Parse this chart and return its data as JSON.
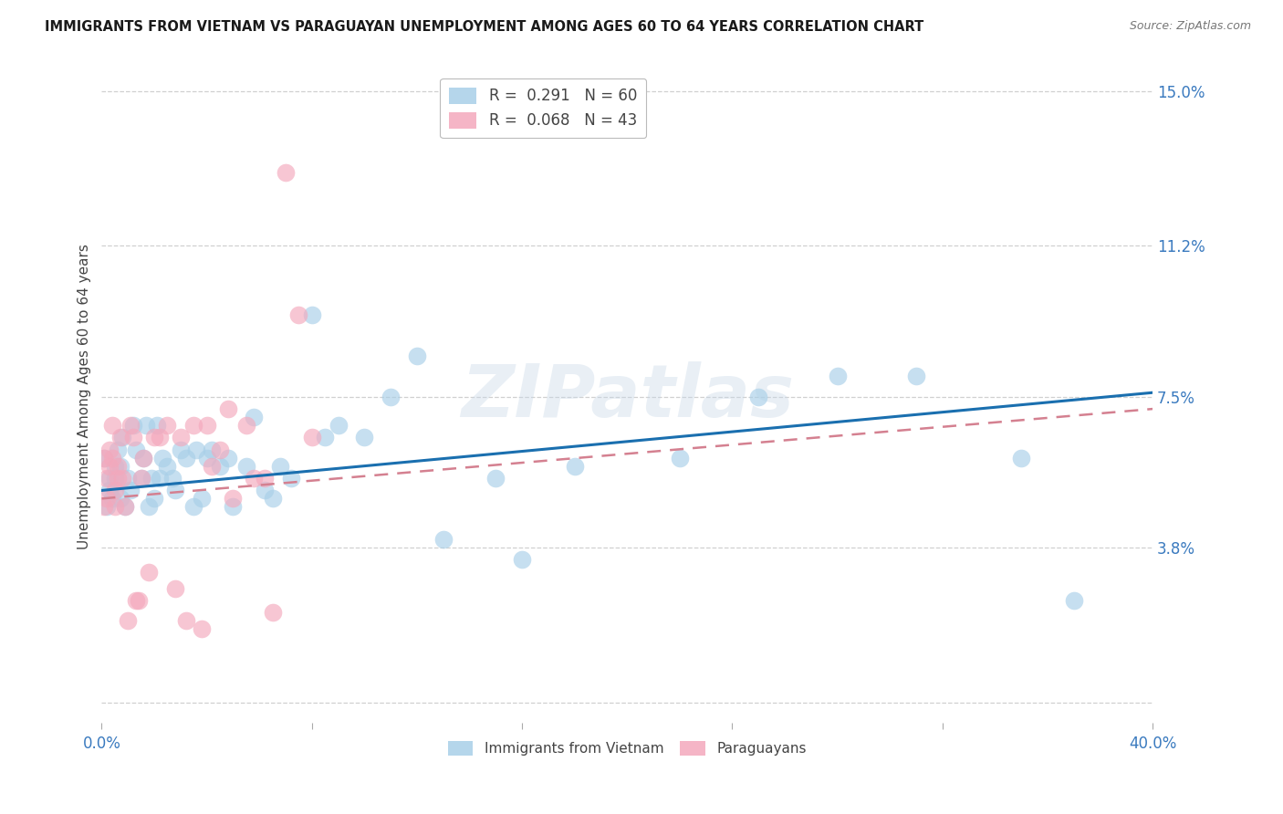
{
  "title": "IMMIGRANTS FROM VIETNAM VS PARAGUAYAN UNEMPLOYMENT AMONG AGES 60 TO 64 YEARS CORRELATION CHART",
  "source": "Source: ZipAtlas.com",
  "ylabel": "Unemployment Among Ages 60 to 64 years",
  "xlim": [
    0.0,
    0.4
  ],
  "ylim": [
    -0.005,
    0.155
  ],
  "xticks": [
    0.0,
    0.08,
    0.16,
    0.24,
    0.32,
    0.4
  ],
  "xticklabels": [
    "0.0%",
    "",
    "",
    "",
    "",
    "40.0%"
  ],
  "yticks_right": [
    0.038,
    0.075,
    0.112,
    0.15
  ],
  "yticklabels_right": [
    "3.8%",
    "7.5%",
    "11.2%",
    "15.0%"
  ],
  "grid_yticks": [
    0.0,
    0.038,
    0.075,
    0.112,
    0.15
  ],
  "legend1_R": "0.291",
  "legend1_N": "60",
  "legend2_R": "0.068",
  "legend2_N": "43",
  "color_blue": "#a8cfe8",
  "color_pink": "#f4a8bc",
  "color_blue_line": "#1a6faf",
  "color_pink_line": "#d48090",
  "watermark": "ZIPatlas",
  "blue_scatter_x": [
    0.001,
    0.002,
    0.003,
    0.003,
    0.004,
    0.005,
    0.005,
    0.006,
    0.007,
    0.007,
    0.008,
    0.009,
    0.01,
    0.011,
    0.012,
    0.013,
    0.015,
    0.016,
    0.017,
    0.018,
    0.019,
    0.02,
    0.021,
    0.022,
    0.023,
    0.025,
    0.027,
    0.028,
    0.03,
    0.032,
    0.035,
    0.036,
    0.038,
    0.04,
    0.042,
    0.045,
    0.048,
    0.05,
    0.055,
    0.058,
    0.062,
    0.065,
    0.068,
    0.072,
    0.08,
    0.085,
    0.09,
    0.1,
    0.11,
    0.12,
    0.13,
    0.15,
    0.16,
    0.18,
    0.22,
    0.25,
    0.28,
    0.31,
    0.35,
    0.37
  ],
  "blue_scatter_y": [
    0.06,
    0.048,
    0.052,
    0.055,
    0.05,
    0.055,
    0.058,
    0.062,
    0.058,
    0.05,
    0.065,
    0.048,
    0.055,
    0.052,
    0.068,
    0.062,
    0.055,
    0.06,
    0.068,
    0.048,
    0.055,
    0.05,
    0.068,
    0.055,
    0.06,
    0.058,
    0.055,
    0.052,
    0.062,
    0.06,
    0.048,
    0.062,
    0.05,
    0.06,
    0.062,
    0.058,
    0.06,
    0.048,
    0.058,
    0.07,
    0.052,
    0.05,
    0.058,
    0.055,
    0.095,
    0.065,
    0.068,
    0.065,
    0.075,
    0.085,
    0.04,
    0.055,
    0.035,
    0.058,
    0.06,
    0.075,
    0.08,
    0.08,
    0.06,
    0.025
  ],
  "pink_scatter_x": [
    0.001,
    0.001,
    0.002,
    0.002,
    0.003,
    0.003,
    0.004,
    0.004,
    0.005,
    0.005,
    0.006,
    0.006,
    0.007,
    0.008,
    0.009,
    0.01,
    0.011,
    0.012,
    0.013,
    0.014,
    0.015,
    0.016,
    0.018,
    0.02,
    0.022,
    0.025,
    0.028,
    0.03,
    0.032,
    0.035,
    0.038,
    0.04,
    0.042,
    0.045,
    0.048,
    0.05,
    0.055,
    0.058,
    0.062,
    0.065,
    0.07,
    0.075,
    0.08
  ],
  "pink_scatter_y": [
    0.06,
    0.048,
    0.05,
    0.055,
    0.058,
    0.062,
    0.06,
    0.068,
    0.048,
    0.052,
    0.055,
    0.058,
    0.065,
    0.055,
    0.048,
    0.02,
    0.068,
    0.065,
    0.025,
    0.025,
    0.055,
    0.06,
    0.032,
    0.065,
    0.065,
    0.068,
    0.028,
    0.065,
    0.02,
    0.068,
    0.018,
    0.068,
    0.058,
    0.062,
    0.072,
    0.05,
    0.068,
    0.055,
    0.055,
    0.022,
    0.13,
    0.095,
    0.065
  ],
  "blue_line_x": [
    0.0,
    0.4
  ],
  "blue_line_y": [
    0.052,
    0.076
  ],
  "pink_line_x": [
    0.0,
    0.095
  ],
  "pink_line_y": [
    0.052,
    0.068
  ]
}
